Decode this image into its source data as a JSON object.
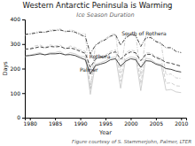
{
  "chart_data": {
    "type": "line",
    "title": "Western Antarctic Peninsula is Warming",
    "subtitle": "Ice Season Duration",
    "xlabel": "Year",
    "ylabel": "Days",
    "caption": "Figure courtesy of S. Stammerjohn, Palmer, LTER",
    "annotations": [
      "South of Rothera",
      "Rothera",
      "Palmer"
    ],
    "xlim": [
      1979,
      2011
    ],
    "ylim": [
      0,
      400
    ],
    "xticks": [
      1980,
      1985,
      1990,
      1995,
      2000,
      2005,
      2010
    ],
    "yticks": [
      0,
      100,
      200,
      300,
      400
    ],
    "grid": false,
    "x": [
      1979,
      1980,
      1981,
      1982,
      1983,
      1984,
      1985,
      1986,
      1987,
      1988,
      1989,
      1990,
      1991,
      1992,
      1993,
      1994,
      1995,
      1996,
      1997,
      1998,
      1999,
      2000,
      2001,
      2002,
      2003,
      2004,
      2005,
      2006,
      2007,
      2008,
      2009,
      2010
    ],
    "series": [
      {
        "color": "#bbbbbb",
        "line_style": "dashdot",
        "values": [
          335,
          342,
          348,
          352,
          348,
          358,
          358,
          362,
          348,
          358,
          352,
          342,
          342,
          115,
          295,
          312,
          322,
          338,
          342,
          182,
          332,
          342,
          338,
          170,
          332,
          332,
          312,
          308,
          175,
          178,
          162,
          160
        ]
      },
      {
        "color": "#444444",
        "line_style": "dashdot",
        "values": [
          340,
          341,
          344,
          348,
          348,
          353,
          355,
          357,
          352,
          352,
          348,
          338,
          330,
          260,
          295,
          308,
          318,
          332,
          338,
          295,
          325,
          338,
          335,
          290,
          325,
          326,
          310,
          302,
          285,
          285,
          270,
          265
        ]
      },
      {
        "color": "#bbbbbb",
        "line_style": "dashed",
        "values": [
          278,
          280,
          292,
          296,
          286,
          296,
          292,
          296,
          280,
          292,
          286,
          276,
          270,
          120,
          242,
          250,
          255,
          270,
          276,
          148,
          264,
          276,
          270,
          138,
          264,
          264,
          248,
          244,
          140,
          142,
          130,
          128
        ]
      },
      {
        "color": "#444444",
        "line_style": "dashed",
        "values": [
          280,
          280,
          284,
          289,
          284,
          290,
          288,
          290,
          282,
          284,
          279,
          270,
          262,
          205,
          238,
          246,
          250,
          263,
          268,
          238,
          257,
          268,
          264,
          232,
          258,
          258,
          244,
          238,
          225,
          222,
          215,
          210
        ]
      },
      {
        "color": "#bbbbbb",
        "line_style": "solid",
        "values": [
          248,
          255,
          260,
          265,
          255,
          265,
          265,
          270,
          255,
          265,
          260,
          250,
          248,
          95,
          218,
          224,
          232,
          244,
          248,
          120,
          238,
          248,
          244,
          110,
          242,
          238,
          222,
          218,
          112,
          115,
          105,
          102
        ]
      },
      {
        "color": "#444444",
        "line_style": "solid",
        "values": [
          252,
          253,
          256,
          260,
          256,
          260,
          260,
          262,
          256,
          257,
          253,
          244,
          236,
          178,
          212,
          218,
          224,
          236,
          240,
          210,
          230,
          240,
          236,
          205,
          232,
          230,
          218,
          212,
          200,
          197,
          190,
          186
        ]
      }
    ]
  }
}
